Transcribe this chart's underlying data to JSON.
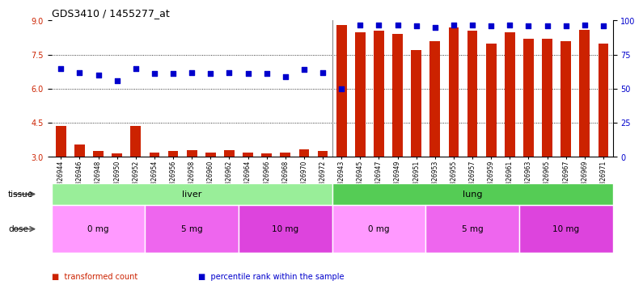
{
  "title": "GDS3410 / 1455277_at",
  "samples": [
    "GSM326944",
    "GSM326946",
    "GSM326948",
    "GSM326950",
    "GSM326952",
    "GSM326954",
    "GSM326956",
    "GSM326958",
    "GSM326960",
    "GSM326962",
    "GSM326964",
    "GSM326966",
    "GSM326968",
    "GSM326970",
    "GSM326972",
    "GSM326943",
    "GSM326945",
    "GSM326947",
    "GSM326949",
    "GSM326951",
    "GSM326953",
    "GSM326955",
    "GSM326957",
    "GSM326959",
    "GSM326961",
    "GSM326963",
    "GSM326965",
    "GSM326967",
    "GSM326969",
    "GSM326971"
  ],
  "transformed_count": [
    4.38,
    3.55,
    3.25,
    3.15,
    4.38,
    3.2,
    3.25,
    3.3,
    3.2,
    3.3,
    3.2,
    3.15,
    3.2,
    3.35,
    3.25,
    8.8,
    8.5,
    8.55,
    8.4,
    7.7,
    8.1,
    8.7,
    8.55,
    8.0,
    8.5,
    8.2,
    8.2,
    8.1,
    8.6,
    8.0
  ],
  "percentile_rank": [
    65,
    62,
    60,
    56,
    65,
    61,
    61,
    62,
    61,
    62,
    61,
    61,
    59,
    64,
    62,
    50,
    97,
    97,
    97,
    96,
    95,
    97,
    97,
    96,
    97,
    96,
    96,
    96,
    97,
    96
  ],
  "ylim_left": [
    3,
    9
  ],
  "ylim_right": [
    0,
    100
  ],
  "yticks_left": [
    3,
    4.5,
    6,
    7.5,
    9
  ],
  "yticks_right": [
    0,
    25,
    50,
    75,
    100
  ],
  "bar_color": "#CC2200",
  "dot_color": "#0000CC",
  "tissue_groups": [
    {
      "label": "liver",
      "start": 0,
      "end": 15,
      "color": "#99EE99"
    },
    {
      "label": "lung",
      "start": 15,
      "end": 30,
      "color": "#55CC55"
    }
  ],
  "dose_groups": [
    {
      "label": "0 mg",
      "start": 0,
      "end": 5,
      "color": "#FF99FF"
    },
    {
      "label": "5 mg",
      "start": 5,
      "end": 10,
      "color": "#EE66EE"
    },
    {
      "label": "10 mg",
      "start": 10,
      "end": 15,
      "color": "#DD44DD"
    },
    {
      "label": "0 mg",
      "start": 15,
      "end": 20,
      "color": "#FF99FF"
    },
    {
      "label": "5 mg",
      "start": 20,
      "end": 25,
      "color": "#EE66EE"
    },
    {
      "label": "10 mg",
      "start": 25,
      "end": 30,
      "color": "#DD44DD"
    }
  ],
  "legend_items": [
    {
      "label": "transformed count",
      "color": "#CC2200"
    },
    {
      "label": "percentile rank within the sample",
      "color": "#0000CC"
    }
  ],
  "background_color": "#FFFFFF"
}
